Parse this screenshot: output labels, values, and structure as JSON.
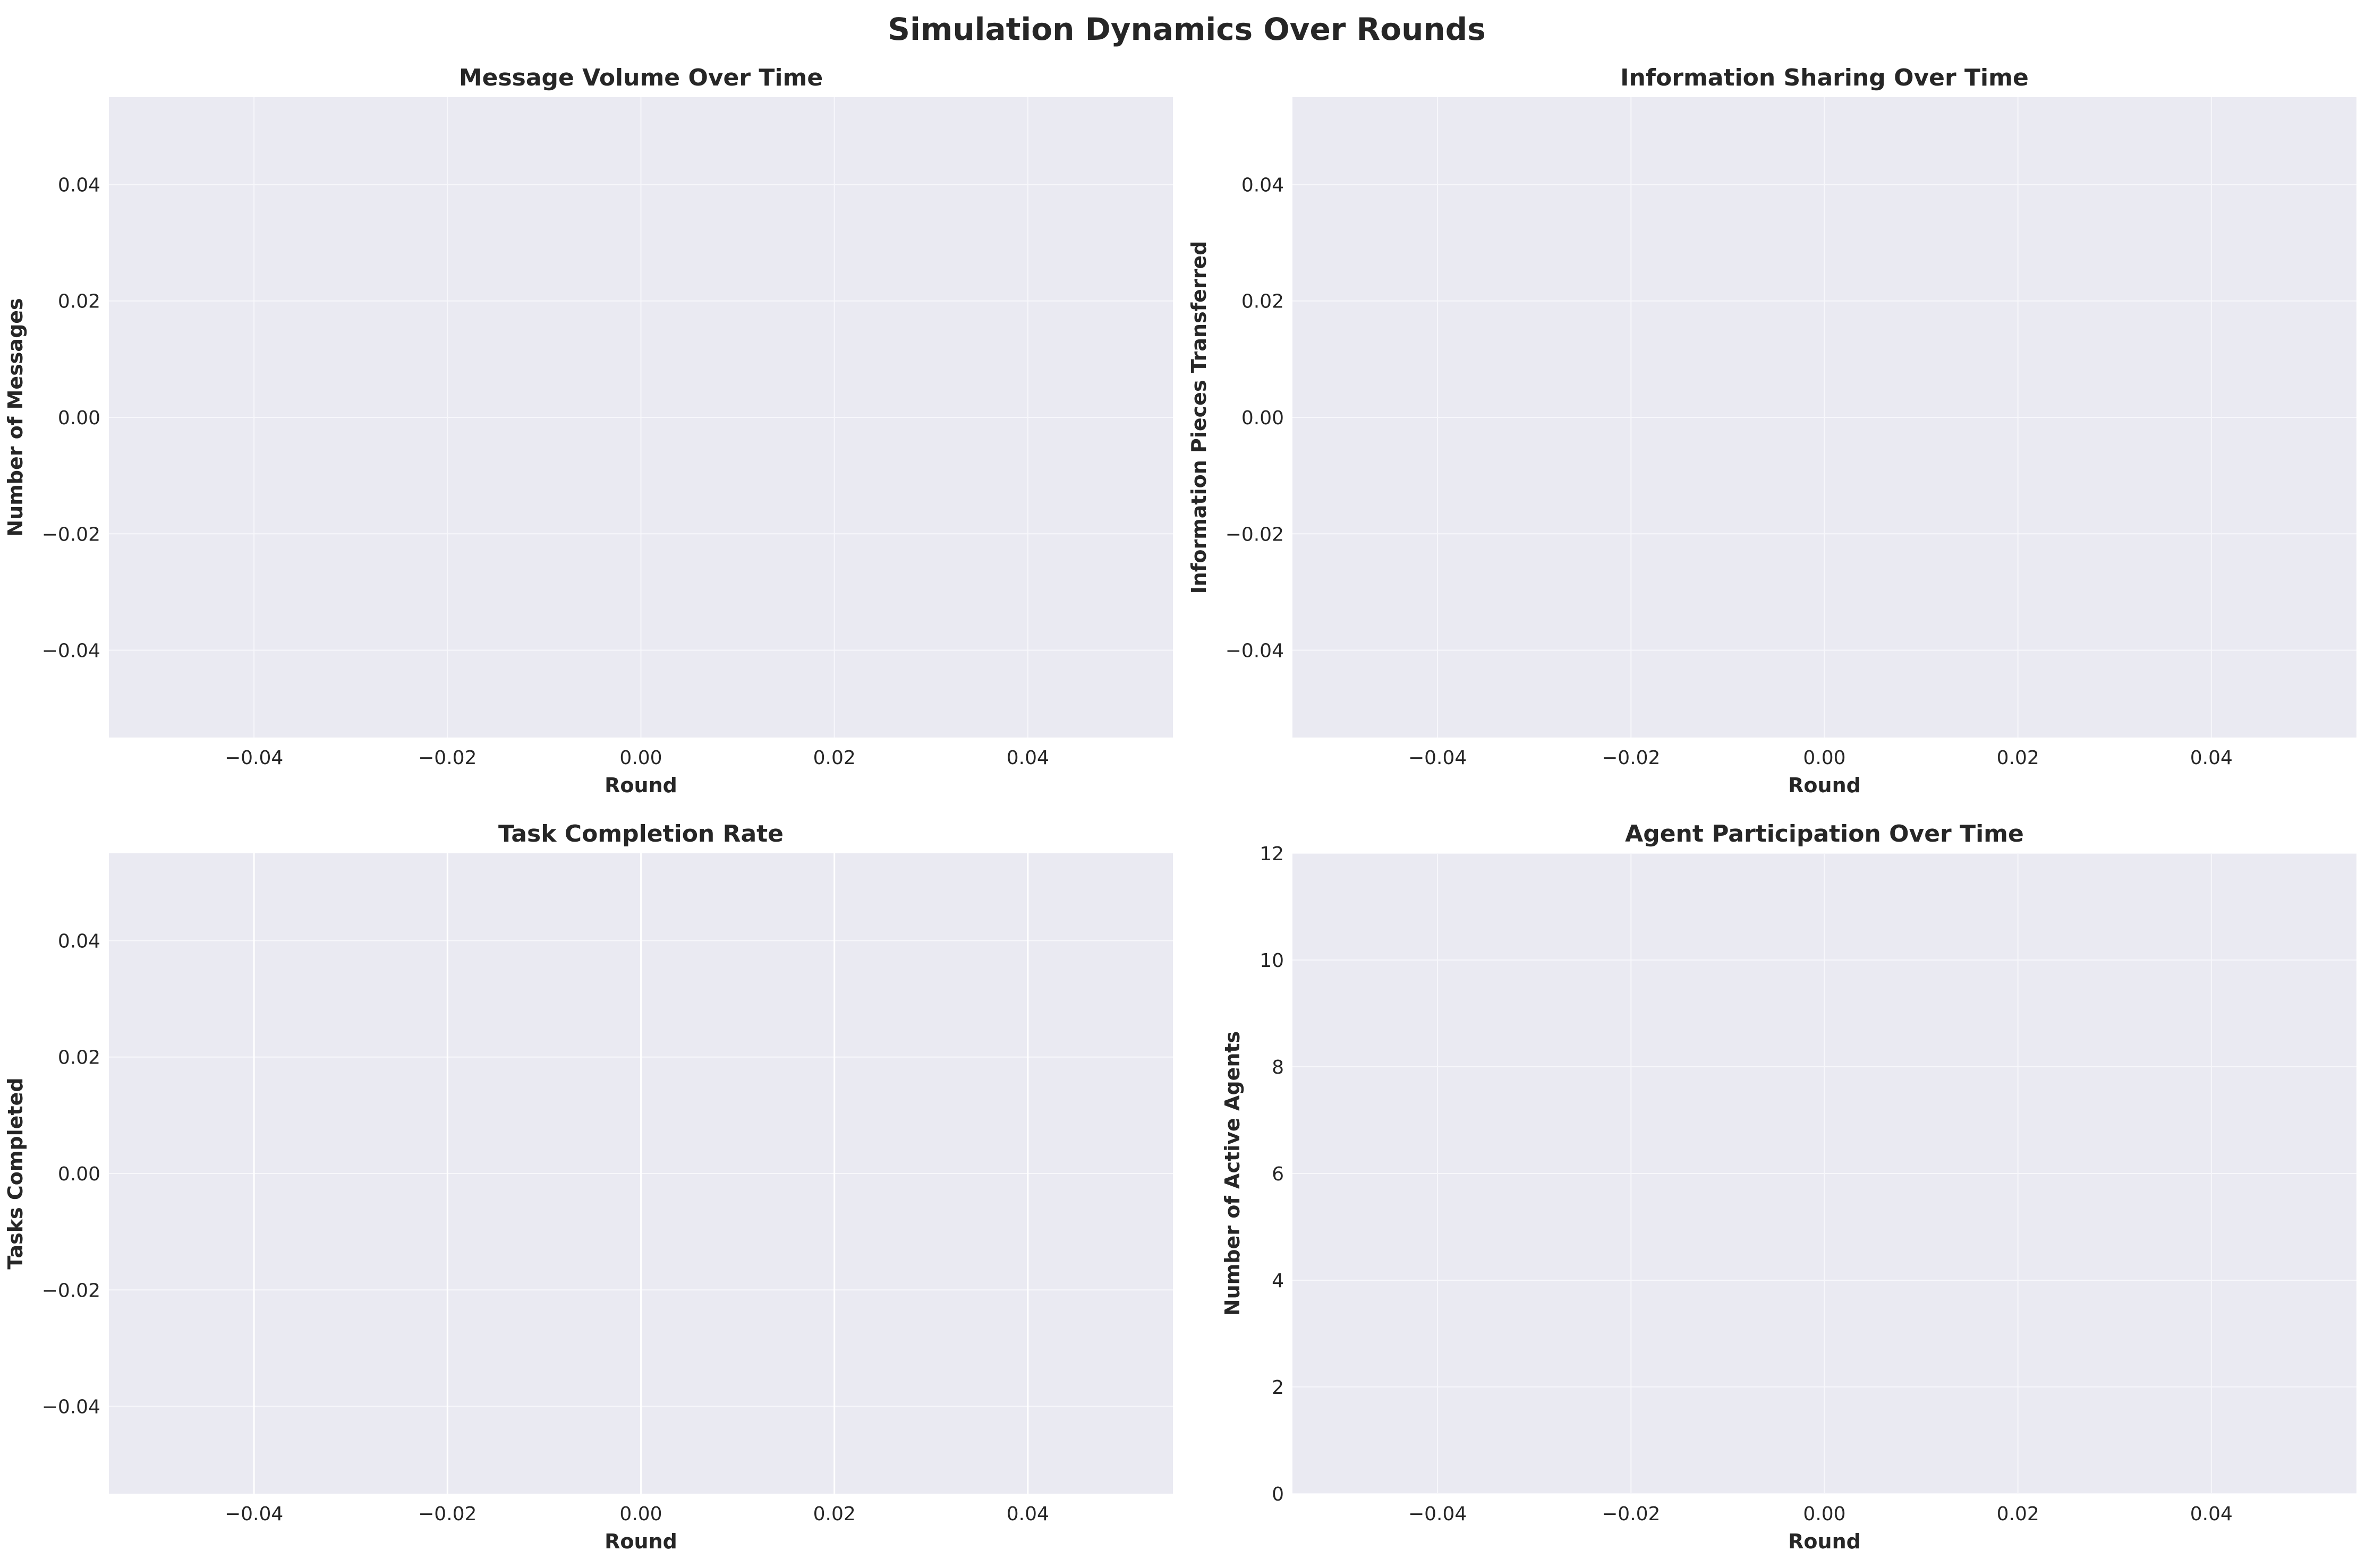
{
  "figure_title": "Simulation Dynamics Over Rounds",
  "colors": {
    "plot_background": "#eaeaf2",
    "grid": "#f7f7fb",
    "grid_strong": "#ffffff",
    "text": "#262626"
  },
  "chart_data": [
    {
      "type": "line",
      "title": "Message Volume Over Time",
      "xlabel": "Round",
      "ylabel": "Number of Messages",
      "xlim": [
        -0.055,
        0.055
      ],
      "ylim": [
        -0.055,
        0.055
      ],
      "xticks": [
        -0.04,
        -0.02,
        0.0,
        0.02,
        0.04
      ],
      "yticks": [
        -0.04,
        -0.02,
        0.0,
        0.02,
        0.04
      ],
      "xtick_labels": [
        "−0.04",
        "−0.02",
        "0.00",
        "0.02",
        "0.04"
      ],
      "ytick_labels": [
        "−0.04",
        "−0.02",
        "0.00",
        "0.02",
        "0.04"
      ],
      "grid": true,
      "series": []
    },
    {
      "type": "line",
      "title": "Information Sharing Over Time",
      "xlabel": "Round",
      "ylabel": "Information Pieces Transferred",
      "xlim": [
        -0.055,
        0.055
      ],
      "ylim": [
        -0.055,
        0.055
      ],
      "xticks": [
        -0.04,
        -0.02,
        0.0,
        0.02,
        0.04
      ],
      "yticks": [
        -0.04,
        -0.02,
        0.0,
        0.02,
        0.04
      ],
      "xtick_labels": [
        "−0.04",
        "−0.02",
        "0.00",
        "0.02",
        "0.04"
      ],
      "ytick_labels": [
        "−0.04",
        "−0.02",
        "0.00",
        "0.02",
        "0.04"
      ],
      "grid": true,
      "series": []
    },
    {
      "type": "bar",
      "title": "Task Completion Rate",
      "xlabel": "Round",
      "ylabel": "Tasks Completed",
      "xlim": [
        -0.055,
        0.055
      ],
      "ylim": [
        -0.055,
        0.055
      ],
      "xticks": [
        -0.04,
        -0.02,
        0.0,
        0.02,
        0.04
      ],
      "yticks": [
        -0.04,
        -0.02,
        0.0,
        0.02,
        0.04
      ],
      "xtick_labels": [
        "−0.04",
        "−0.02",
        "0.00",
        "0.02",
        "0.04"
      ],
      "ytick_labels": [
        "−0.04",
        "−0.02",
        "0.00",
        "0.02",
        "0.04"
      ],
      "grid": true,
      "strong_xgrid": true,
      "series": []
    },
    {
      "type": "line",
      "title": "Agent Participation Over Time",
      "xlabel": "Round",
      "ylabel": "Number of Active Agents",
      "xlim": [
        -0.055,
        0.055
      ],
      "ylim": [
        0,
        12
      ],
      "xticks": [
        -0.04,
        -0.02,
        0.0,
        0.02,
        0.04
      ],
      "yticks": [
        0,
        2,
        4,
        6,
        8,
        10,
        12
      ],
      "xtick_labels": [
        "−0.04",
        "−0.02",
        "0.00",
        "0.02",
        "0.04"
      ],
      "ytick_labels": [
        "0",
        "2",
        "4",
        "6",
        "8",
        "10",
        "12"
      ],
      "grid": true,
      "series": []
    }
  ]
}
